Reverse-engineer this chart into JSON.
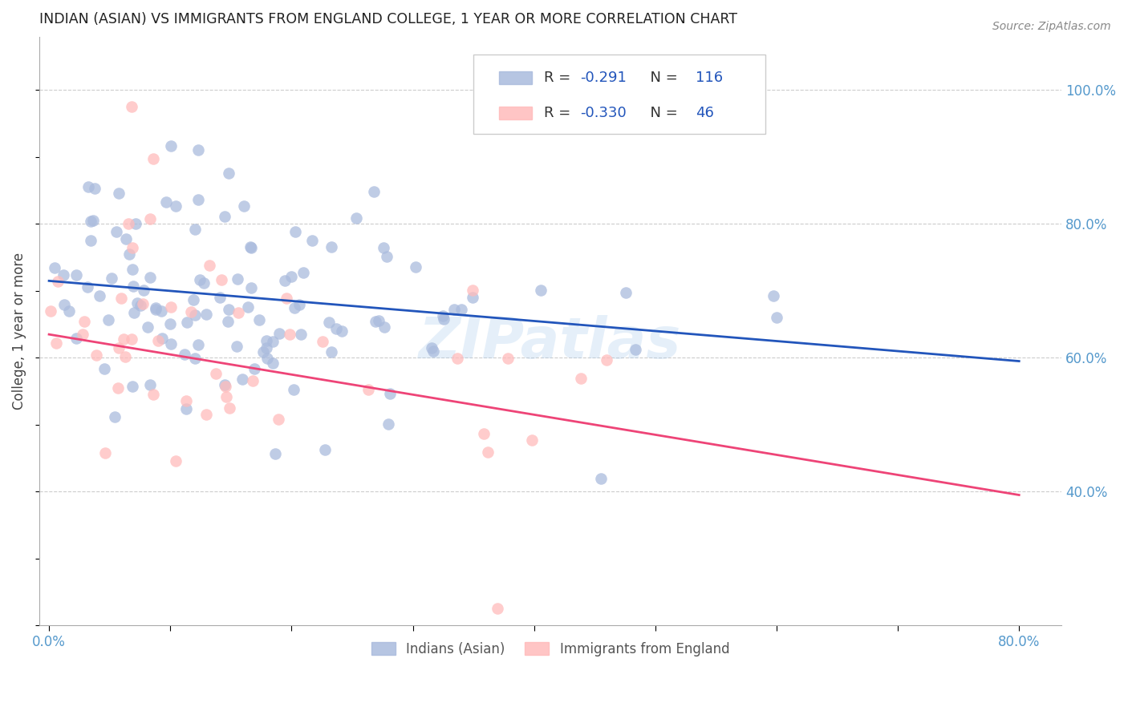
{
  "title": "INDIAN (ASIAN) VS IMMIGRANTS FROM ENGLAND COLLEGE, 1 YEAR OR MORE CORRELATION CHART",
  "source": "Source: ZipAtlas.com",
  "ylabel": "College, 1 year or more",
  "xlim": [
    0.0,
    0.8
  ],
  "ylim": [
    0.2,
    1.08
  ],
  "ytick_positions": [
    0.4,
    0.6,
    0.8,
    1.0
  ],
  "yticklabels": [
    "40.0%",
    "60.0%",
    "80.0%",
    "100.0%"
  ],
  "blue_color": "#AABBDD",
  "pink_color": "#FFBBBB",
  "blue_line_color": "#2255BB",
  "pink_line_color": "#EE4477",
  "grid_color": "#CCCCCC",
  "watermark": "ZIPatlas",
  "watermark_color": "#AACCEE",
  "legend_R_blue": "-0.291",
  "legend_N_blue": "116",
  "legend_R_pink": "-0.330",
  "legend_N_pink": "46",
  "blue_trend": [
    0.0,
    0.715,
    0.8,
    0.595
  ],
  "pink_trend": [
    0.0,
    0.635,
    0.8,
    0.395
  ]
}
